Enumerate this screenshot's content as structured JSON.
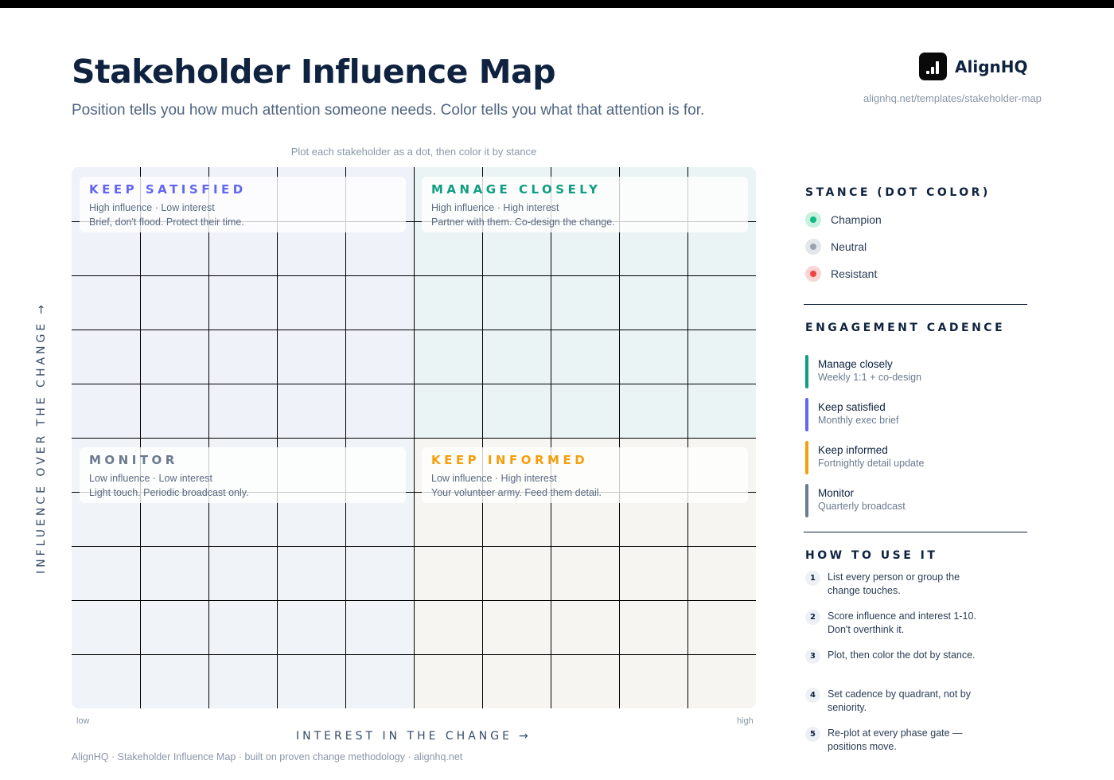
{
  "header": {
    "title": "Stakeholder Influence Map",
    "subtitle": "Position tells you how much attention someone needs. Color tells you what that attention is for."
  },
  "brand": {
    "name": "AlignHQ",
    "url": "alignhq.net/templates/stakeholder-map",
    "logo_icon": "bar-chart-icon"
  },
  "matrix": {
    "hint": "Plot each stakeholder as a dot, then color it by stance",
    "quadrants": {
      "keep_satisfied": {
        "title": "KEEP SATISFIED",
        "axes": "High influence · Low interest",
        "advice": "Brief, don't flood. Protect their time.",
        "color": "#6366f1",
        "bg": "#eff2f9"
      },
      "manage_closely": {
        "title": "MANAGE CLOSELY",
        "axes": "High influence · High interest",
        "advice": "Partner with them. Co-design the change.",
        "color": "#0f9e80",
        "bg": "#eaf4f4"
      },
      "monitor": {
        "title": "MONITOR",
        "axes": "Low influence · Low interest",
        "advice": "Light touch. Periodic broadcast only.",
        "color": "#6b7a8f",
        "bg": "#f0f3f7"
      },
      "keep_informed": {
        "title": "KEEP INFORMED",
        "axes": "Low influence · High interest",
        "advice": "Your volunteer army. Feed them detail.",
        "color": "#f59e0b",
        "bg": "#f7f5f1"
      }
    },
    "x_axis": {
      "label": "INTEREST IN THE CHANGE",
      "low": "low",
      "high": "high",
      "arrow_icon": "arrow-right-icon"
    },
    "y_axis": {
      "label": "INFLUENCE OVER THE CHANGE",
      "arrow_icon": "arrow-up-icon"
    }
  },
  "footer": "AlignHQ · Stakeholder Influence Map · built on proven change methodology · alignhq.net",
  "sidebar": {
    "stance": {
      "heading": "STANCE (DOT COLOR)",
      "items": [
        {
          "label": "Champion",
          "color": "#10b981",
          "ring": "#c7f0de"
        },
        {
          "label": "Neutral",
          "color": "#9ca3af",
          "ring": "#e3e6ea"
        },
        {
          "label": "Resistant",
          "color": "#ef4444",
          "ring": "#fbd5d5"
        }
      ]
    },
    "cadence": {
      "heading": "ENGAGEMENT CADENCE",
      "items": [
        {
          "name": "Manage closely",
          "desc": "Weekly 1:1 + co-design",
          "color": "#0f9e80"
        },
        {
          "name": "Keep satisfied",
          "desc": "Monthly exec brief",
          "color": "#6366f1"
        },
        {
          "name": "Keep informed",
          "desc": "Fortnightly detail update",
          "color": "#f59e0b"
        },
        {
          "name": "Monitor",
          "desc": "Quarterly broadcast",
          "color": "#6b7a8f"
        }
      ]
    },
    "how_to": {
      "heading": "HOW TO USE IT",
      "steps": [
        {
          "num": "1",
          "text": "List every person or group the change touches."
        },
        {
          "num": "2",
          "text": "Score influence and interest 1-10. Don't overthink it."
        },
        {
          "num": "3",
          "text": "Plot, then color the dot by stance."
        },
        {
          "num": "4",
          "text": "Set cadence by quadrant, not by seniority."
        },
        {
          "num": "5",
          "text": "Re-plot at every phase gate — positions move."
        }
      ]
    }
  }
}
